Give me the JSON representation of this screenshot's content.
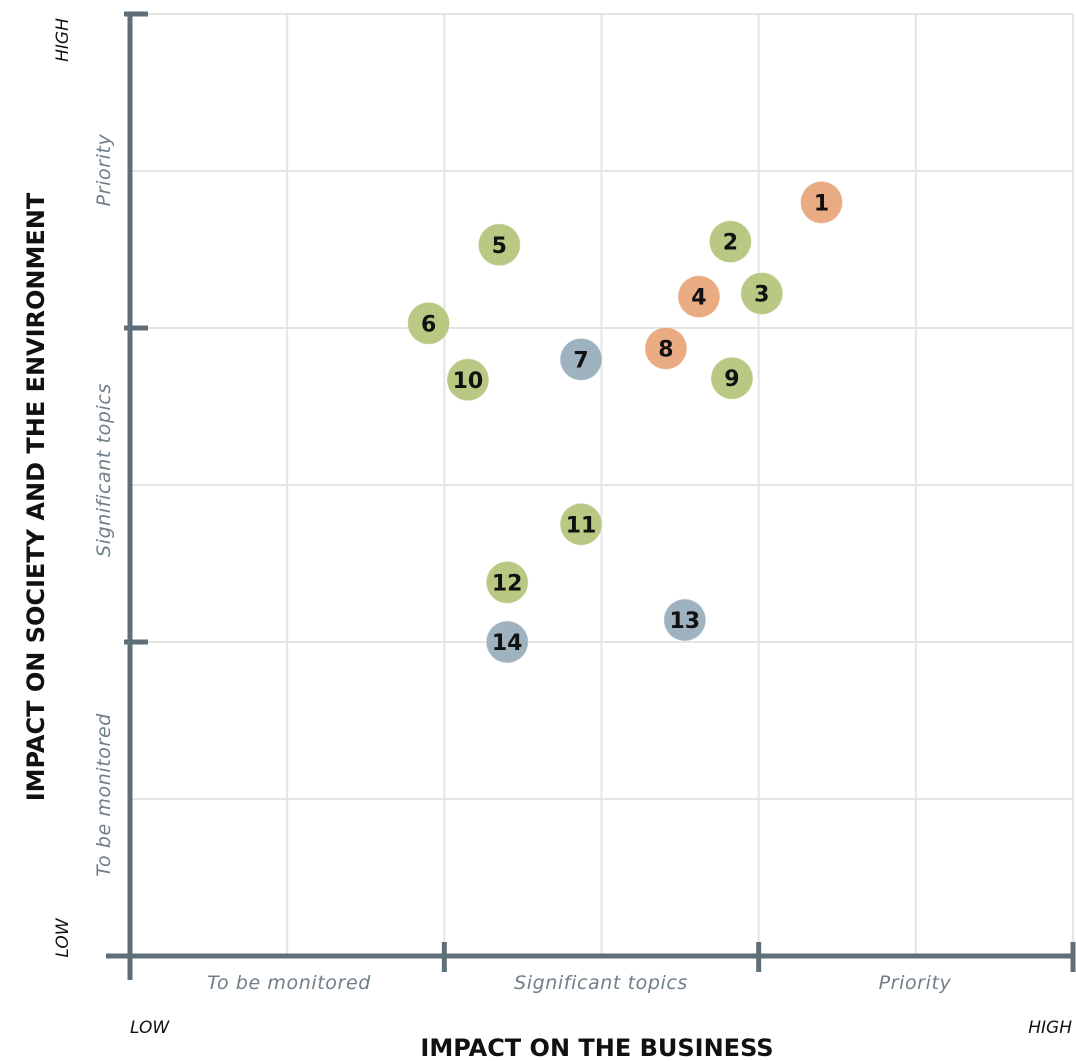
{
  "chart_data": {
    "type": "scatter",
    "title": "",
    "xlabel": "IMPACT ON THE BUSINESS",
    "ylabel": "IMPACT ON SOCIETY AND THE ENVIRONMENT",
    "x_low_label": "LOW",
    "x_high_label": "HIGH",
    "y_low_label": "LOW",
    "y_high_label": "HIGH",
    "xlim": [
      0,
      6
    ],
    "ylim": [
      0,
      6
    ],
    "grid": true,
    "x_zones": [
      "To be monitored",
      "Significant topics",
      "Priority"
    ],
    "y_zones": [
      "To be monitored",
      "Significant topics",
      "Priority"
    ],
    "colors": {
      "orange": "#e9ab82",
      "green": "#b9c983",
      "blue": "#9fb2c0",
      "axis": "#5e6f7a",
      "grid": "#e4e4e4"
    },
    "points": [
      {
        "label": "1",
        "x": 4.4,
        "y": 4.8,
        "color": "orange"
      },
      {
        "label": "2",
        "x": 3.82,
        "y": 4.55,
        "color": "green"
      },
      {
        "label": "3",
        "x": 4.02,
        "y": 4.22,
        "color": "green"
      },
      {
        "label": "4",
        "x": 3.62,
        "y": 4.2,
        "color": "orange"
      },
      {
        "label": "5",
        "x": 2.35,
        "y": 4.53,
        "color": "green"
      },
      {
        "label": "6",
        "x": 1.9,
        "y": 4.03,
        "color": "green"
      },
      {
        "label": "7",
        "x": 2.87,
        "y": 3.8,
        "color": "blue"
      },
      {
        "label": "8",
        "x": 3.41,
        "y": 3.87,
        "color": "orange"
      },
      {
        "label": "9",
        "x": 3.83,
        "y": 3.68,
        "color": "green"
      },
      {
        "label": "10",
        "x": 2.15,
        "y": 3.67,
        "color": "green"
      },
      {
        "label": "11",
        "x": 2.87,
        "y": 2.75,
        "color": "green"
      },
      {
        "label": "12",
        "x": 2.4,
        "y": 2.38,
        "color": "green"
      },
      {
        "label": "13",
        "x": 3.53,
        "y": 2.14,
        "color": "blue"
      },
      {
        "label": "14",
        "x": 2.4,
        "y": 2.0,
        "color": "blue"
      }
    ]
  }
}
